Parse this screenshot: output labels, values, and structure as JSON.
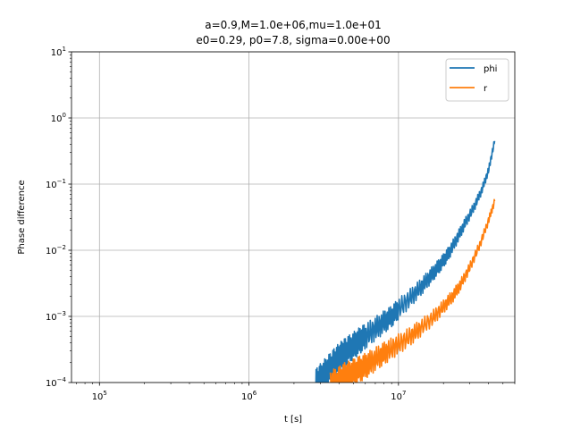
{
  "chart_data": {
    "type": "line",
    "title_lines": [
      "a=0.9,M=1.0e+06,mu=1.0e+01",
      "e0=0.29, p0=7.8, sigma=0.00e+00"
    ],
    "xlabel": "t [s]",
    "ylabel": "Phase difference",
    "xscale": "log",
    "yscale": "log",
    "xlim": [
      65000,
      60000000
    ],
    "ylim": [
      0.0001,
      10
    ],
    "grid": true,
    "legend_position": "top-right",
    "x_tick_labels": [
      {
        "value": 100000,
        "base": "10",
        "exp": "5"
      },
      {
        "value": 1000000,
        "base": "10",
        "exp": "6"
      },
      {
        "value": 10000000,
        "base": "10",
        "exp": "7"
      }
    ],
    "y_tick_labels": [
      {
        "value": 0.0001,
        "base": "10",
        "exp": "−4"
      },
      {
        "value": 0.001,
        "base": "10",
        "exp": "−3"
      },
      {
        "value": 0.01,
        "base": "10",
        "exp": "−2"
      },
      {
        "value": 0.1,
        "base": "10",
        "exp": "−1"
      },
      {
        "value": 1,
        "base": "10",
        "exp": "0"
      },
      {
        "value": 10,
        "base": "10",
        "exp": "1"
      }
    ],
    "series": [
      {
        "name": "phi",
        "color": "#1f77b4",
        "x": [
          2800000,
          3000000,
          3300000,
          3600000,
          3900000,
          4200000,
          4500000,
          5000000,
          5500000,
          6000000,
          7000000,
          8000000,
          9000000,
          10000000,
          12000000,
          14000000,
          16000000,
          18000000,
          20000000,
          22000000,
          25000000,
          28000000,
          32000000,
          36000000,
          40000000,
          44000000
        ],
        "y": [
          9e-05,
          0.00011,
          0.00014,
          0.00018,
          0.00022,
          0.00026,
          0.0003,
          0.00036,
          0.00043,
          0.0005,
          0.00065,
          0.00082,
          0.001,
          0.0013,
          0.0019,
          0.0027,
          0.0038,
          0.0052,
          0.007,
          0.0095,
          0.016,
          0.026,
          0.045,
          0.08,
          0.16,
          0.45
        ]
      },
      {
        "name": "r",
        "color": "#ff7f0e",
        "x": [
          3500000,
          3900000,
          4300000,
          4700000,
          5200000,
          5800000,
          6500000,
          7500000,
          8500000,
          10000000,
          12000000,
          14000000,
          17000000,
          20000000,
          23000000,
          26000000,
          30000000,
          35000000,
          40000000,
          44000000
        ],
        "y": [
          9e-05,
          0.0001,
          0.00012,
          0.00013,
          0.00015,
          0.00017,
          0.0002,
          0.00025,
          0.0003,
          0.00038,
          0.0005,
          0.00066,
          0.00095,
          0.0014,
          0.002,
          0.003,
          0.0055,
          0.012,
          0.028,
          0.055
        ]
      }
    ]
  }
}
